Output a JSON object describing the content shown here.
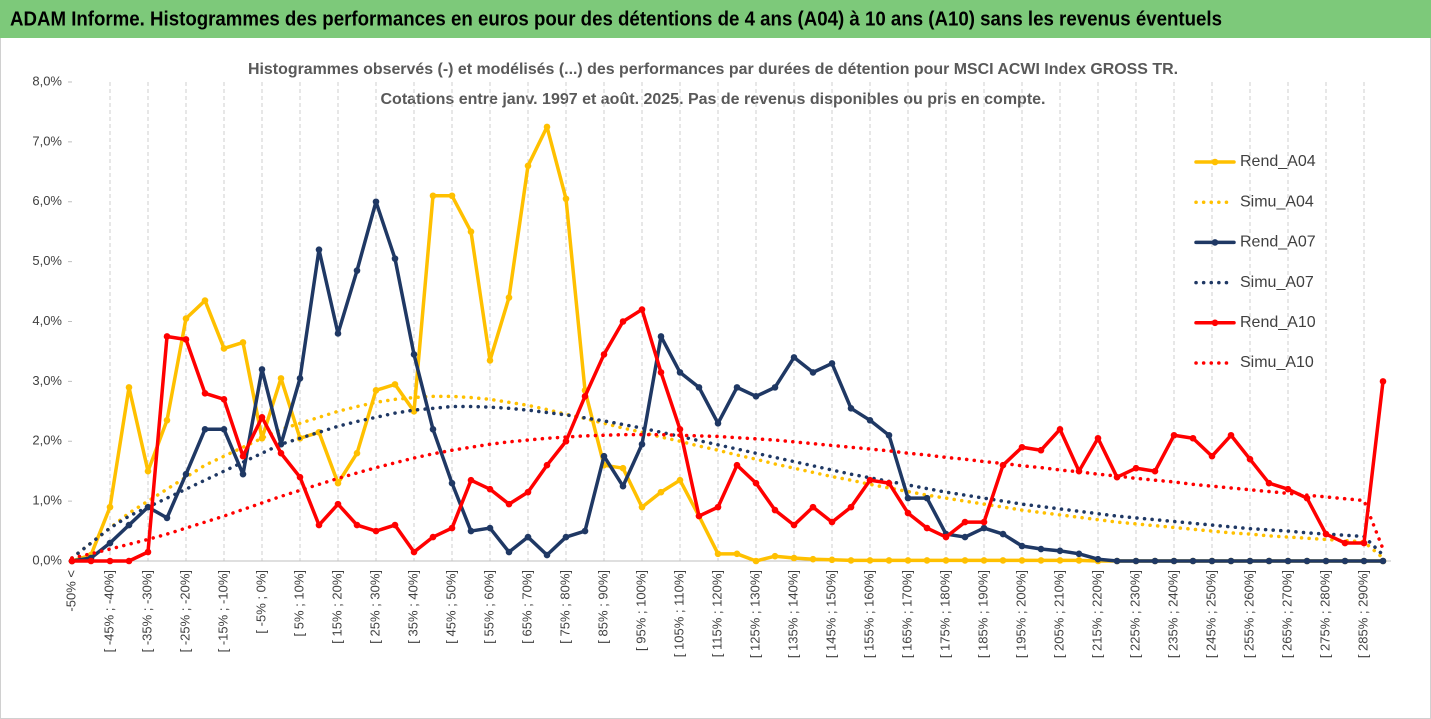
{
  "chart_data": {
    "type": "line",
    "title": "ADAM Informe. Histogrammes des performances en euros pour des détentions de 4 ans (A04) à 10 ans (A10) sans les revenus éventuels",
    "subtitle": [
      "Histogrammes observés (-) et modélisés (...) des performances par durées de détention pour MSCI ACWI Index GROSS TR.",
      "Cotations entre janv. 1997 et août. 2025. Pas de revenus disponibles ou pris en compte."
    ],
    "categories": [
      "-50% <",
      null,
      "[ -45% ; -40%]",
      null,
      "[ -35% ; -30%]",
      null,
      "[ -25% ; -20%]",
      null,
      "[ -15% ; -10%]",
      null,
      "[ -5% ; 0%]",
      null,
      "[ 5% ; 10%]",
      null,
      "[ 15% ; 20%]",
      null,
      "[ 25% ; 30%]",
      null,
      "[ 35% ; 40%]",
      null,
      "[ 45% ; 50%]",
      null,
      "[ 55% ; 60%]",
      null,
      "[ 65% ; 70%]",
      null,
      "[ 75% ; 80%]",
      null,
      "[ 85% ; 90%]",
      null,
      "[ 95% ; 100%]",
      null,
      "[ 105% ; 110%]",
      null,
      "[ 115% ; 120%]",
      null,
      "[ 125% ; 130%]",
      null,
      "[ 135% ; 140%]",
      null,
      "[ 145% ; 150%]",
      null,
      "[ 155% ; 160%]",
      null,
      "[ 165% ; 170%]",
      null,
      "[ 175% ; 180%]",
      null,
      "[ 185% ; 190%]",
      null,
      "[ 195% ; 200%]",
      null,
      "[ 205% ; 210%]",
      null,
      "[ 215% ; 220%]",
      null,
      "[ 225% ; 230%]",
      null,
      "[ 235% ; 240%]",
      null,
      "[ 245% ; 250%]",
      null,
      "[ 255% ; 260%]",
      null,
      "[ 265% ; 270%]",
      null,
      "[ 275% ; 280%]",
      null,
      "[ 285% ; 290%]",
      null
    ],
    "series": [
      {
        "name": "Rend_A04",
        "color": "#ffc000",
        "style": "solid",
        "markers": true,
        "values": [
          0,
          0.1,
          0.9,
          2.9,
          1.5,
          2.35,
          4.05,
          4.35,
          3.55,
          3.65,
          2.05,
          3.05,
          2.05,
          2.15,
          1.3,
          1.8,
          2.85,
          2.95,
          2.5,
          6.1,
          6.1,
          5.5,
          3.35,
          4.4,
          6.6,
          7.25,
          6.05,
          2.85,
          1.6,
          1.55,
          0.9,
          1.15,
          1.35,
          0.75,
          0.12,
          0.12,
          0,
          0.08,
          0.05,
          0.03,
          0.02,
          0.01,
          0.01,
          0.01,
          0.01,
          0.01,
          0.01,
          0.01,
          0.01,
          0.01,
          0.01,
          0.01,
          0.01,
          0.01,
          0,
          0,
          0,
          0,
          0,
          0,
          0,
          0,
          0,
          0,
          0,
          0,
          0,
          0,
          0,
          0
        ]
      },
      {
        "name": "Simu_A04",
        "color": "#ffc000",
        "style": "dotted",
        "markers": false,
        "values": [
          0.05,
          0.3,
          0.55,
          0.8,
          1.0,
          1.2,
          1.4,
          1.6,
          1.75,
          1.9,
          2.05,
          2.2,
          2.3,
          2.4,
          2.5,
          2.58,
          2.65,
          2.7,
          2.73,
          2.75,
          2.75,
          2.73,
          2.7,
          2.65,
          2.6,
          2.53,
          2.45,
          2.38,
          2.3,
          2.22,
          2.15,
          2.07,
          2.0,
          1.92,
          1.85,
          1.77,
          1.7,
          1.62,
          1.55,
          1.48,
          1.41,
          1.35,
          1.28,
          1.22,
          1.16,
          1.1,
          1.05,
          1.0,
          0.95,
          0.9,
          0.85,
          0.81,
          0.77,
          0.73,
          0.69,
          0.65,
          0.62,
          0.59,
          0.56,
          0.53,
          0.5,
          0.47,
          0.45,
          0.42,
          0.4,
          0.38,
          0.36,
          0.34,
          0.32,
          0.05
        ]
      },
      {
        "name": "Rend_A07",
        "color": "#1f3864",
        "style": "solid",
        "markers": true,
        "values": [
          0,
          0.05,
          0.3,
          0.6,
          0.9,
          0.72,
          1.45,
          2.2,
          2.2,
          1.45,
          3.2,
          1.95,
          3.05,
          5.2,
          3.8,
          4.85,
          6.0,
          5.05,
          3.45,
          2.2,
          1.3,
          0.5,
          0.55,
          0.15,
          0.4,
          0.1,
          0.4,
          0.5,
          1.75,
          1.25,
          1.95,
          3.75,
          3.15,
          2.9,
          2.3,
          2.9,
          2.75,
          2.9,
          3.4,
          3.15,
          3.3,
          2.55,
          2.35,
          2.1,
          1.05,
          1.05,
          0.45,
          0.4,
          0.55,
          0.45,
          0.25,
          0.2,
          0.17,
          0.12,
          0.03,
          0,
          0,
          0,
          0,
          0,
          0,
          0,
          0,
          0,
          0,
          0,
          0,
          0,
          0,
          0
        ]
      },
      {
        "name": "Simu_A07",
        "color": "#1f3864",
        "style": "dotted",
        "markers": false,
        "values": [
          0.05,
          0.3,
          0.55,
          0.75,
          0.9,
          1.05,
          1.2,
          1.35,
          1.5,
          1.65,
          1.8,
          1.95,
          2.05,
          2.15,
          2.25,
          2.33,
          2.4,
          2.47,
          2.52,
          2.55,
          2.58,
          2.58,
          2.57,
          2.55,
          2.52,
          2.48,
          2.44,
          2.39,
          2.34,
          2.28,
          2.22,
          2.15,
          2.08,
          2.01,
          1.94,
          1.87,
          1.8,
          1.73,
          1.66,
          1.59,
          1.52,
          1.45,
          1.39,
          1.33,
          1.27,
          1.21,
          1.15,
          1.1,
          1.05,
          1.0,
          0.95,
          0.91,
          0.87,
          0.83,
          0.79,
          0.75,
          0.72,
          0.69,
          0.66,
          0.63,
          0.6,
          0.57,
          0.54,
          0.52,
          0.5,
          0.47,
          0.45,
          0.43,
          0.41,
          0.1
        ]
      },
      {
        "name": "Rend_A10",
        "color": "#ff0000",
        "style": "solid",
        "markers": true,
        "values": [
          0,
          0,
          0,
          0,
          0.15,
          3.75,
          3.7,
          2.8,
          2.7,
          1.75,
          2.4,
          1.8,
          1.4,
          0.6,
          0.95,
          0.6,
          0.5,
          0.6,
          0.15,
          0.4,
          0.55,
          1.35,
          1.2,
          0.95,
          1.15,
          1.6,
          2.0,
          2.75,
          3.45,
          4.0,
          4.2,
          3.15,
          2.2,
          0.75,
          0.9,
          1.6,
          1.3,
          0.85,
          0.6,
          0.9,
          0.65,
          0.9,
          1.35,
          1.3,
          0.8,
          0.55,
          0.4,
          0.65,
          0.65,
          1.6,
          1.9,
          1.85,
          2.2,
          1.5,
          2.05,
          1.4,
          1.55,
          1.5,
          2.1,
          2.05,
          1.75,
          2.1,
          1.7,
          1.3,
          1.2,
          1.05,
          0.45,
          0.3,
          0.3,
          3.0
        ]
      },
      {
        "name": "Simu_A10",
        "color": "#ff0000",
        "style": "dotted",
        "markers": false,
        "values": [
          0.05,
          0.12,
          0.2,
          0.28,
          0.36,
          0.45,
          0.55,
          0.65,
          0.75,
          0.86,
          0.97,
          1.08,
          1.18,
          1.28,
          1.38,
          1.47,
          1.56,
          1.64,
          1.72,
          1.79,
          1.85,
          1.9,
          1.95,
          1.99,
          2.02,
          2.05,
          2.07,
          2.09,
          2.1,
          2.11,
          2.11,
          2.11,
          2.1,
          2.09,
          2.08,
          2.06,
          2.04,
          2.02,
          1.99,
          1.96,
          1.93,
          1.9,
          1.87,
          1.84,
          1.8,
          1.77,
          1.73,
          1.7,
          1.66,
          1.63,
          1.59,
          1.56,
          1.52,
          1.49,
          1.45,
          1.42,
          1.38,
          1.35,
          1.32,
          1.28,
          1.25,
          1.22,
          1.19,
          1.16,
          1.13,
          1.1,
          1.07,
          1.04,
          1.01,
          0.2
        ]
      }
    ],
    "ylim": [
      0,
      8
    ],
    "yticks": [
      {
        "value": 0,
        "label": "0,0%"
      },
      {
        "value": 1,
        "label": "1,0%"
      },
      {
        "value": 2,
        "label": "2,0%"
      },
      {
        "value": 3,
        "label": "3,0%"
      },
      {
        "value": 4,
        "label": "4,0%"
      },
      {
        "value": 5,
        "label": "5,0%"
      },
      {
        "value": 6,
        "label": "6,0%"
      },
      {
        "value": 7,
        "label": "7,0%"
      },
      {
        "value": 8,
        "label": "8,0%"
      }
    ],
    "x_grid": true,
    "legend": "right"
  }
}
